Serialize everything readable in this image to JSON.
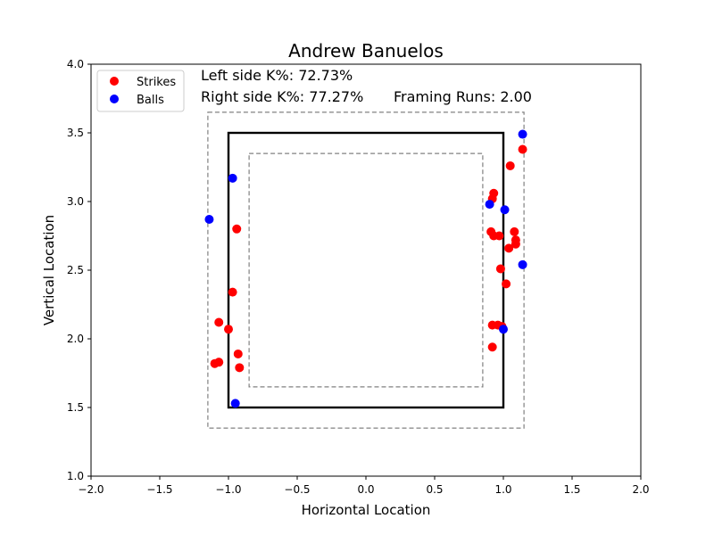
{
  "chart_data": {
    "type": "scatter",
    "title": "Andrew Banuelos",
    "xlabel": "Horizontal Location",
    "ylabel": "Vertical Location",
    "xlim": [
      -2.0,
      2.0
    ],
    "ylim": [
      1.0,
      4.0
    ],
    "xticks": [
      "−2.0",
      "−1.5",
      "−1.0",
      "−0.5",
      "0.0",
      "0.5",
      "1.0",
      "1.5",
      "2.0"
    ],
    "xtick_values": [
      -2.0,
      -1.5,
      -1.0,
      -0.5,
      0.0,
      0.5,
      1.0,
      1.5,
      2.0
    ],
    "yticks": [
      "1.0",
      "1.5",
      "2.0",
      "2.5",
      "3.0",
      "3.5",
      "4.0"
    ],
    "ytick_values": [
      1.0,
      1.5,
      2.0,
      2.5,
      3.0,
      3.5,
      4.0
    ],
    "grid": false,
    "legend_position": "top-left",
    "annotations": {
      "left_k": "Left side K%: 72.73%",
      "right_k": "Right side K%: 77.27%",
      "framing": "Framing Runs: 2.00"
    },
    "zones": {
      "strike_zone": {
        "x": [
          -1.0,
          1.0
        ],
        "y": [
          1.5,
          3.5
        ],
        "color": "#000000",
        "style": "solid"
      },
      "outer_zone": {
        "x": [
          -1.15,
          1.15
        ],
        "y": [
          1.35,
          3.65
        ],
        "color": "#808080",
        "style": "dashed"
      },
      "inner_zone": {
        "x": [
          -0.85,
          0.85
        ],
        "y": [
          1.65,
          3.35
        ],
        "color": "#808080",
        "style": "dashed"
      }
    },
    "series": [
      {
        "name": "Strikes",
        "color": "#ff0000",
        "points": [
          [
            1.14,
            3.38
          ],
          [
            1.05,
            3.26
          ],
          [
            0.93,
            3.06
          ],
          [
            0.92,
            3.02
          ],
          [
            -0.94,
            2.8
          ],
          [
            0.91,
            2.78
          ],
          [
            0.93,
            2.75
          ],
          [
            0.97,
            2.75
          ],
          [
            1.08,
            2.78
          ],
          [
            1.09,
            2.72
          ],
          [
            1.09,
            2.69
          ],
          [
            1.04,
            2.66
          ],
          [
            0.98,
            2.51
          ],
          [
            1.02,
            2.4
          ],
          [
            -0.97,
            2.34
          ],
          [
            -1.07,
            2.12
          ],
          [
            -1.0,
            2.07
          ],
          [
            0.92,
            2.1
          ],
          [
            0.96,
            2.1
          ],
          [
            0.99,
            2.09
          ],
          [
            0.92,
            1.94
          ],
          [
            -0.93,
            1.89
          ],
          [
            -0.92,
            1.79
          ],
          [
            -1.07,
            1.83
          ],
          [
            -1.1,
            1.82
          ]
        ]
      },
      {
        "name": "Balls",
        "color": "#0000ff",
        "points": [
          [
            1.14,
            3.49
          ],
          [
            -0.97,
            3.17
          ],
          [
            0.9,
            2.98
          ],
          [
            1.01,
            2.94
          ],
          [
            -1.14,
            2.87
          ],
          [
            1.14,
            2.54
          ],
          [
            1.0,
            2.07
          ],
          [
            -0.95,
            1.53
          ]
        ]
      }
    ]
  }
}
